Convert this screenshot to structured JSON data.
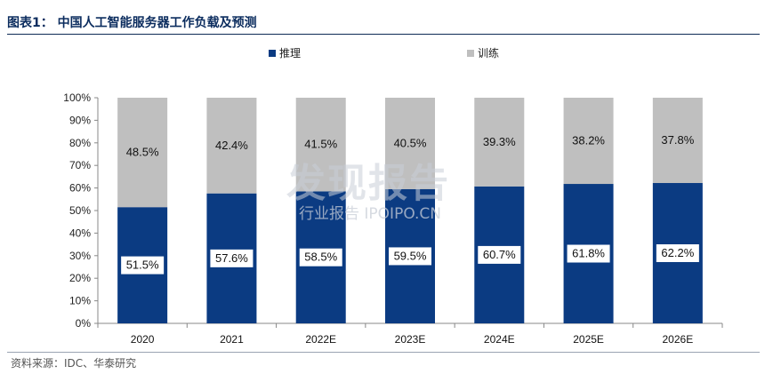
{
  "figure": {
    "title": "图表1： 中国人工智能服务器工作负载及预测",
    "source": "资料来源：IDC、华泰研究"
  },
  "watermark": {
    "main": "发现报告",
    "sub": "行业报告 IPOIPO.CN"
  },
  "colors": {
    "inference": "#0b3b82",
    "training": "#bfbfbf",
    "title": "#0b2c5e"
  },
  "chart_data": {
    "type": "bar",
    "stacked": true,
    "categories": [
      "2020",
      "2021",
      "2022E",
      "2023E",
      "2024E",
      "2025E",
      "2026E"
    ],
    "series": [
      {
        "name": "推理",
        "values": [
          51.5,
          57.6,
          58.5,
          59.5,
          60.7,
          61.8,
          62.2
        ],
        "labels": [
          "51.5%",
          "57.6%",
          "58.5%",
          "59.5%",
          "60.7%",
          "61.8%",
          "62.2%"
        ]
      },
      {
        "name": "训练",
        "values": [
          48.5,
          42.4,
          41.5,
          40.5,
          39.3,
          38.2,
          37.8
        ],
        "labels": [
          "48.5%",
          "42.4%",
          "41.5%",
          "40.5%",
          "39.3%",
          "38.2%",
          "37.8%"
        ]
      }
    ],
    "yticks": [
      "0%",
      "10%",
      "20%",
      "30%",
      "40%",
      "50%",
      "60%",
      "70%",
      "80%",
      "90%",
      "100%"
    ],
    "ylim": [
      0,
      100
    ],
    "legend_position": "top-center",
    "grid": false
  }
}
